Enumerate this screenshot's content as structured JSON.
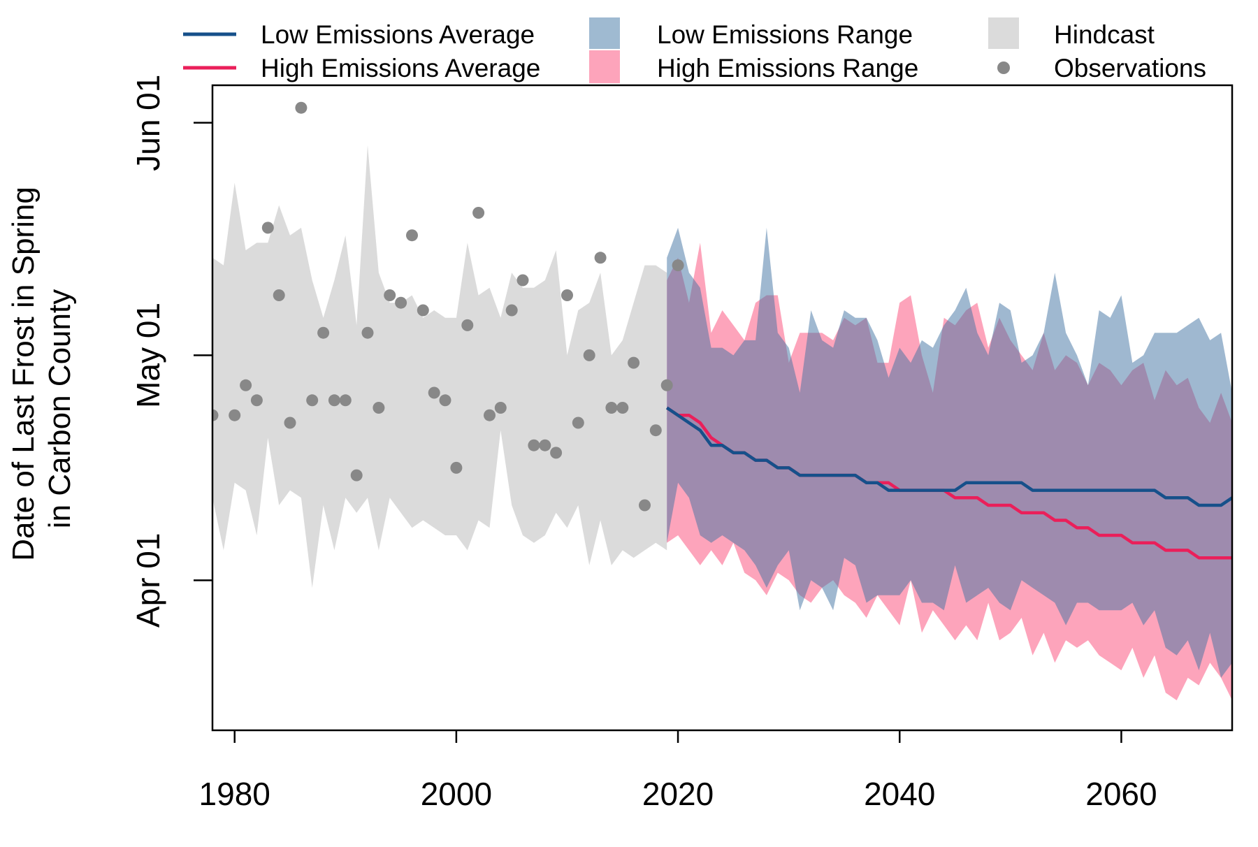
{
  "chart_data": {
    "type": "line",
    "title": "",
    "xlabel": "",
    "ylabel_lines": [
      "Date of Last Frost in Spring",
      "in Carbon County"
    ],
    "xlim": [
      1978,
      2070
    ],
    "ylim": [
      "Mar 12",
      "Jun 06"
    ],
    "x_ticks": [
      1980,
      2000,
      2020,
      2040,
      2060
    ],
    "y_ticks": [
      {
        "label": "Apr 01",
        "date": "Apr 01"
      },
      {
        "label": "May 01",
        "date": "May 01"
      },
      {
        "label": "Jun 01",
        "date": "Jun 01"
      }
    ],
    "grid": false,
    "legend_position": "top (outside plot, 3 columns)",
    "legend": [
      {
        "label": "Low Emissions Average",
        "kind": "line",
        "color": "#16508a"
      },
      {
        "label": "High Emissions Average",
        "kind": "line",
        "color": "#ea1f5a"
      },
      {
        "label": "Low Emissions Range",
        "kind": "fill",
        "color": "#9fbad1"
      },
      {
        "label": "High Emissions Range",
        "kind": "fill",
        "color": "#fda4bb"
      },
      {
        "label": "Hindcast",
        "kind": "fill",
        "color": "#dbdbdb"
      },
      {
        "label": "Observations",
        "kind": "point",
        "color": "#888888"
      }
    ],
    "colors": {
      "low_avg": "#16508a",
      "high_avg": "#ea1f5a",
      "low_range": "#9fbad1",
      "high_range": "#fda4bb",
      "overlap": "#9e85a8",
      "hindcast": "#dbdbdb",
      "observations": "#888888"
    },
    "observations": [
      {
        "year": 1978,
        "date": "Apr 23"
      },
      {
        "year": 1980,
        "date": "Apr 23"
      },
      {
        "year": 1981,
        "date": "Apr 27"
      },
      {
        "year": 1982,
        "date": "Apr 25"
      },
      {
        "year": 1983,
        "date": "May 18"
      },
      {
        "year": 1984,
        "date": "May 09"
      },
      {
        "year": 1985,
        "date": "Apr 22"
      },
      {
        "year": 1986,
        "date": "Jun 03"
      },
      {
        "year": 1987,
        "date": "Apr 25"
      },
      {
        "year": 1988,
        "date": "May 04"
      },
      {
        "year": 1989,
        "date": "Apr 25"
      },
      {
        "year": 1990,
        "date": "Apr 25"
      },
      {
        "year": 1991,
        "date": "Apr 15"
      },
      {
        "year": 1992,
        "date": "May 04"
      },
      {
        "year": 1993,
        "date": "Apr 24"
      },
      {
        "year": 1994,
        "date": "May 09"
      },
      {
        "year": 1995,
        "date": "May 08"
      },
      {
        "year": 1996,
        "date": "May 17"
      },
      {
        "year": 1997,
        "date": "May 07"
      },
      {
        "year": 1998,
        "date": "Apr 26"
      },
      {
        "year": 1999,
        "date": "Apr 25"
      },
      {
        "year": 2000,
        "date": "Apr 16"
      },
      {
        "year": 2001,
        "date": "May 05"
      },
      {
        "year": 2002,
        "date": "May 20"
      },
      {
        "year": 2003,
        "date": "Apr 23"
      },
      {
        "year": 2004,
        "date": "Apr 24"
      },
      {
        "year": 2005,
        "date": "May 07"
      },
      {
        "year": 2006,
        "date": "May 11"
      },
      {
        "year": 2007,
        "date": "Apr 19"
      },
      {
        "year": 2008,
        "date": "Apr 19"
      },
      {
        "year": 2009,
        "date": "Apr 18"
      },
      {
        "year": 2010,
        "date": "May 09"
      },
      {
        "year": 2011,
        "date": "Apr 22"
      },
      {
        "year": 2012,
        "date": "May 01"
      },
      {
        "year": 2013,
        "date": "May 14"
      },
      {
        "year": 2014,
        "date": "Apr 24"
      },
      {
        "year": 2015,
        "date": "Apr 24"
      },
      {
        "year": 2016,
        "date": "Apr 30"
      },
      {
        "year": 2017,
        "date": "Apr 11"
      },
      {
        "year": 2018,
        "date": "Apr 21"
      },
      {
        "year": 2019,
        "date": "Apr 27"
      },
      {
        "year": 2020,
        "date": "May 13"
      }
    ],
    "hindcast_range": {
      "years": [
        1978,
        1979,
        1980,
        1981,
        1982,
        1983,
        1984,
        1985,
        1986,
        1987,
        1988,
        1989,
        1990,
        1991,
        1992,
        1993,
        1994,
        1995,
        1996,
        1997,
        1998,
        1999,
        2000,
        2001,
        2002,
        2003,
        2004,
        2005,
        2006,
        2007,
        2008,
        2009,
        2010,
        2011,
        2012,
        2013,
        2014,
        2015,
        2016,
        2017,
        2018,
        2019
      ],
      "upper": [
        "May 14",
        "May 13",
        "May 24",
        "May 15",
        "May 16",
        "May 16",
        "May 21",
        "May 17",
        "May 18",
        "May 11",
        "May 06",
        "May 11",
        "May 17",
        "May 05",
        "May 29",
        "May 12",
        "May 08",
        "May 08",
        "May 09",
        "May 06",
        "May 07",
        "May 06",
        "May 06",
        "May 16",
        "May 09",
        "May 10",
        "May 06",
        "May 12",
        "May 10",
        "May 10",
        "May 11",
        "May 15",
        "May 01",
        "May 07",
        "May 08",
        "May 12",
        "May 01",
        "May 03",
        "May 08",
        "May 13",
        "May 13",
        "May 12"
      ],
      "lower": [
        "Apr 12",
        "Apr 05",
        "Apr 14",
        "Apr 13",
        "Apr 07",
        "Apr 20",
        "Apr 11",
        "Apr 13",
        "Apr 12",
        "Mar 31",
        "Apr 11",
        "Apr 05",
        "Apr 12",
        "Apr 10",
        "Apr 12",
        "Apr 05",
        "Apr 12",
        "Apr 10",
        "Apr 08",
        "Apr 09",
        "Apr 08",
        "Apr 07",
        "Apr 07",
        "Apr 05",
        "Apr 09",
        "Apr 08",
        "Apr 21",
        "Apr 11",
        "Apr 07",
        "Apr 06",
        "Apr 07",
        "Apr 10",
        "Apr 08",
        "Apr 11",
        "Apr 03",
        "Apr 09",
        "Apr 03",
        "Apr 05",
        "Apr 04",
        "Apr 05",
        "Apr 06",
        "Apr 05"
      ]
    },
    "series": [
      {
        "name": "Low Emissions Average",
        "x": [
          2019,
          2020,
          2021,
          2022,
          2023,
          2024,
          2025,
          2026,
          2027,
          2028,
          2029,
          2030,
          2031,
          2032,
          2033,
          2034,
          2035,
          2036,
          2037,
          2038,
          2039,
          2040,
          2041,
          2042,
          2043,
          2044,
          2045,
          2046,
          2047,
          2048,
          2049,
          2050,
          2051,
          2052,
          2053,
          2054,
          2055,
          2056,
          2057,
          2058,
          2059,
          2060,
          2061,
          2062,
          2063,
          2064,
          2065,
          2066,
          2067,
          2068,
          2069,
          2070
        ],
        "y": [
          "Apr 24",
          "Apr 23",
          "Apr 22",
          "Apr 21",
          "Apr 19",
          "Apr 19",
          "Apr 18",
          "Apr 18",
          "Apr 17",
          "Apr 17",
          "Apr 16",
          "Apr 16",
          "Apr 15",
          "Apr 15",
          "Apr 15",
          "Apr 15",
          "Apr 15",
          "Apr 15",
          "Apr 14",
          "Apr 14",
          "Apr 13",
          "Apr 13",
          "Apr 13",
          "Apr 13",
          "Apr 13",
          "Apr 13",
          "Apr 13",
          "Apr 14",
          "Apr 14",
          "Apr 14",
          "Apr 14",
          "Apr 14",
          "Apr 14",
          "Apr 13",
          "Apr 13",
          "Apr 13",
          "Apr 13",
          "Apr 13",
          "Apr 13",
          "Apr 13",
          "Apr 13",
          "Apr 13",
          "Apr 13",
          "Apr 13",
          "Apr 13",
          "Apr 12",
          "Apr 12",
          "Apr 12",
          "Apr 11",
          "Apr 11",
          "Apr 11",
          "Apr 12"
        ]
      },
      {
        "name": "High Emissions Average",
        "x": [
          2019,
          2020,
          2021,
          2022,
          2023,
          2024,
          2025,
          2026,
          2027,
          2028,
          2029,
          2030,
          2031,
          2032,
          2033,
          2034,
          2035,
          2036,
          2037,
          2038,
          2039,
          2040,
          2041,
          2042,
          2043,
          2044,
          2045,
          2046,
          2047,
          2048,
          2049,
          2050,
          2051,
          2052,
          2053,
          2054,
          2055,
          2056,
          2057,
          2058,
          2059,
          2060,
          2061,
          2062,
          2063,
          2064,
          2065,
          2066,
          2067,
          2068,
          2069,
          2070
        ],
        "y": [
          "Apr 24",
          "Apr 23",
          "Apr 23",
          "Apr 22",
          "Apr 20",
          "Apr 19",
          "Apr 18",
          "Apr 18",
          "Apr 17",
          "Apr 17",
          "Apr 16",
          "Apr 16",
          "Apr 15",
          "Apr 15",
          "Apr 15",
          "Apr 15",
          "Apr 15",
          "Apr 15",
          "Apr 14",
          "Apr 14",
          "Apr 14",
          "Apr 13",
          "Apr 13",
          "Apr 13",
          "Apr 13",
          "Apr 13",
          "Apr 12",
          "Apr 12",
          "Apr 12",
          "Apr 11",
          "Apr 11",
          "Apr 11",
          "Apr 10",
          "Apr 10",
          "Apr 10",
          "Apr 09",
          "Apr 09",
          "Apr 08",
          "Apr 08",
          "Apr 07",
          "Apr 07",
          "Apr 07",
          "Apr 06",
          "Apr 06",
          "Apr 06",
          "Apr 05",
          "Apr 05",
          "Apr 05",
          "Apr 04",
          "Apr 04",
          "Apr 04",
          "Apr 04"
        ]
      }
    ],
    "low_emissions_range": {
      "x": [
        2019,
        2020,
        2021,
        2022,
        2023,
        2024,
        2025,
        2026,
        2027,
        2028,
        2029,
        2030,
        2031,
        2032,
        2033,
        2034,
        2035,
        2036,
        2037,
        2038,
        2039,
        2040,
        2041,
        2042,
        2043,
        2044,
        2045,
        2046,
        2047,
        2048,
        2049,
        2050,
        2051,
        2052,
        2053,
        2054,
        2055,
        2056,
        2057,
        2058,
        2059,
        2060,
        2061,
        2062,
        2063,
        2064,
        2065,
        2066,
        2067,
        2068,
        2069,
        2070
      ],
      "upper": [
        "May 14",
        "May 18",
        "May 12",
        "May 10",
        "May 02",
        "May 02",
        "May 01",
        "May 03",
        "May 03",
        "May 18",
        "May 04",
        "May 02",
        "Apr 26",
        "May 07",
        "May 03",
        "May 02",
        "May 07",
        "May 06",
        "May 06",
        "May 03",
        "Apr 28",
        "May 02",
        "Apr 30",
        "May 03",
        "May 02",
        "May 05",
        "May 07",
        "May 10",
        "May 04",
        "May 01",
        "May 08",
        "May 07",
        "Apr 30",
        "May 01",
        "May 04",
        "May 12",
        "May 04",
        "May 01",
        "Apr 27",
        "May 07",
        "May 06",
        "May 09",
        "Apr 30",
        "May 01",
        "May 04",
        "May 04",
        "May 04",
        "May 05",
        "May 06",
        "May 03",
        "May 04",
        "Apr 26"
      ],
      "lower": [
        "Apr 06",
        "Apr 14",
        "Apr 12",
        "Apr 07",
        "Apr 06",
        "Apr 07",
        "Apr 06",
        "Apr 05",
        "Apr 03",
        "Mar 31",
        "Apr 03",
        "Apr 05",
        "Mar 28",
        "Apr 01",
        "Mar 31",
        "Mar 28",
        "Apr 04",
        "Apr 03",
        "Mar 29",
        "Mar 30",
        "Mar 30",
        "Mar 30",
        "Apr 01",
        "Mar 29",
        "Mar 29",
        "Mar 28",
        "Apr 03",
        "Mar 29",
        "Mar 30",
        "Mar 31",
        "Mar 29",
        "Mar 28",
        "Apr 01",
        "Mar 31",
        "Mar 30",
        "Mar 29",
        "Mar 26",
        "Mar 29",
        "Mar 29",
        "Mar 28",
        "Mar 28",
        "Mar 28",
        "Mar 29",
        "Mar 26",
        "Mar 28",
        "Mar 23",
        "Mar 22",
        "Mar 24",
        "Mar 20",
        "Mar 25",
        "Mar 19",
        "Mar 21"
      ]
    },
    "high_emissions_range": {
      "x": [
        2019,
        2020,
        2021,
        2022,
        2023,
        2024,
        2025,
        2026,
        2027,
        2028,
        2029,
        2030,
        2031,
        2032,
        2033,
        2034,
        2035,
        2036,
        2037,
        2038,
        2039,
        2040,
        2041,
        2042,
        2043,
        2044,
        2045,
        2046,
        2047,
        2048,
        2049,
        2050,
        2051,
        2052,
        2053,
        2054,
        2055,
        2056,
        2057,
        2058,
        2059,
        2060,
        2061,
        2062,
        2063,
        2064,
        2065,
        2066,
        2067,
        2068,
        2069,
        2070
      ],
      "upper": [
        "May 11",
        "May 14",
        "May 08",
        "May 16",
        "May 04",
        "May 07",
        "May 05",
        "May 03",
        "May 08",
        "May 09",
        "May 09",
        "Apr 30",
        "May 04",
        "May 04",
        "May 04",
        "May 03",
        "May 06",
        "May 05",
        "May 06",
        "Apr 30",
        "Apr 30",
        "May 08",
        "May 09",
        "May 01",
        "Apr 26",
        "May 06",
        "May 05",
        "May 07",
        "May 08",
        "May 02",
        "May 06",
        "May 03",
        "May 01",
        "Apr 29",
        "May 04",
        "Apr 29",
        "May 01",
        "Apr 30",
        "Apr 27",
        "Apr 30",
        "Apr 29",
        "Apr 27",
        "Apr 29",
        "Apr 30",
        "Apr 25",
        "Apr 29",
        "Apr 27",
        "Apr 28",
        "Apr 24",
        "Apr 22",
        "Apr 26",
        "Apr 22"
      ],
      "lower": [
        "Apr 06",
        "Apr 07",
        "Apr 05",
        "Apr 03",
        "Apr 05",
        "Apr 03",
        "Apr 06",
        "Apr 02",
        "Apr 01",
        "Mar 30",
        "Apr 02",
        "Apr 01",
        "Mar 30",
        "Mar 29",
        "Mar 31",
        "Apr 01",
        "Mar 30",
        "Mar 29",
        "Mar 27",
        "Mar 30",
        "Mar 28",
        "Mar 26",
        "Apr 01",
        "Mar 25",
        "Mar 28",
        "Mar 26",
        "Mar 24",
        "Mar 26",
        "Mar 24",
        "Mar 29",
        "Mar 24",
        "Mar 25",
        "Mar 27",
        "Mar 22",
        "Mar 25",
        "Mar 21",
        "Mar 24",
        "Mar 23",
        "Mar 24",
        "Mar 22",
        "Mar 21",
        "Mar 20",
        "Mar 23",
        "Mar 19",
        "Mar 22",
        "Mar 17",
        "Mar 16",
        "Mar 19",
        "Mar 18",
        "Mar 21",
        "Mar 19",
        "Mar 16"
      ]
    }
  }
}
